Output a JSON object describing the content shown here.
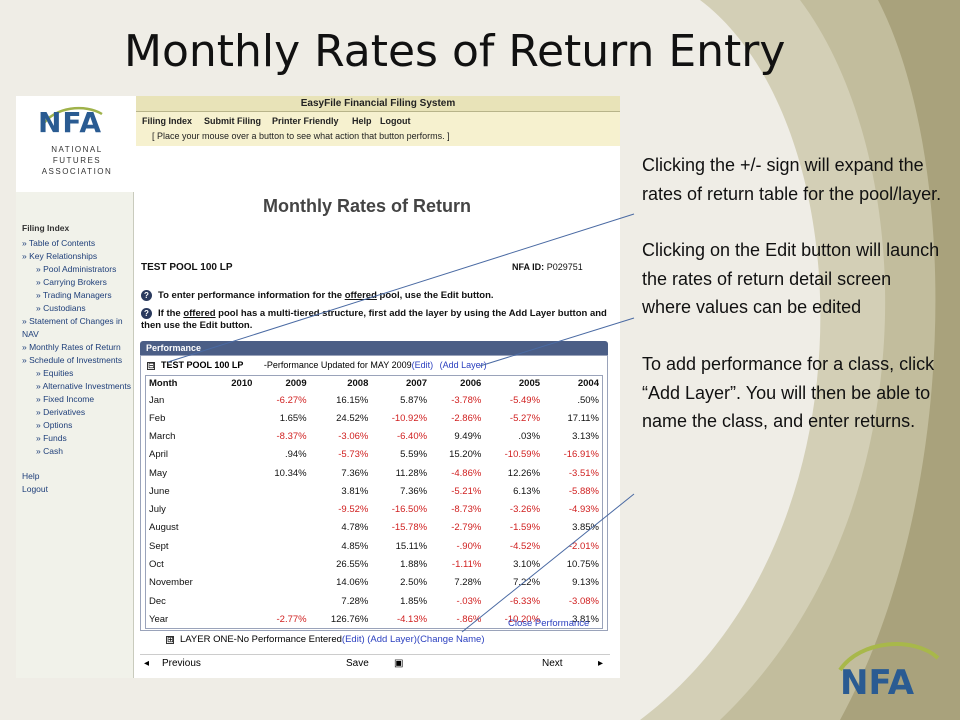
{
  "slide_title": "Monthly Rates of Return Entry",
  "app": {
    "logo_letters": "NFA",
    "logo_sub": [
      "NATIONAL",
      "FUTURES",
      "ASSOCIATION"
    ],
    "system_title": "EasyFile Financial Filing System",
    "menu": [
      "Filing Index",
      "Submit Filing",
      "Printer Friendly",
      "Help",
      "Logout"
    ],
    "hint": "[ Place your mouse over a button to see what action that button performs. ]",
    "sidebar": {
      "heading": "Filing Index",
      "items": [
        {
          "label": "» Table of Contents",
          "level": 1
        },
        {
          "label": "» Key Relationships",
          "level": 1
        },
        {
          "label": "» Pool Administrators",
          "level": 2
        },
        {
          "label": "» Carrying Brokers",
          "level": 2
        },
        {
          "label": "» Trading Managers",
          "level": 2
        },
        {
          "label": "» Custodians",
          "level": 2
        },
        {
          "label": "» Statement of Changes in NAV",
          "level": 1
        },
        {
          "label": "» Monthly Rates of Return",
          "level": 1
        },
        {
          "label": "» Schedule of Investments",
          "level": 1
        },
        {
          "label": "» Equities",
          "level": 2
        },
        {
          "label": "» Alternative Investments",
          "level": 2
        },
        {
          "label": "» Fixed Income",
          "level": 2
        },
        {
          "label": "» Derivatives",
          "level": 2
        },
        {
          "label": "» Options",
          "level": 2
        },
        {
          "label": "» Funds",
          "level": 2
        },
        {
          "label": "» Cash",
          "level": 2
        }
      ],
      "footer": [
        "Help",
        "Logout"
      ]
    },
    "page_title": "Monthly Rates of Return",
    "pool_name": "TEST POOL 100 LP",
    "nfa_id_label": "NFA ID:",
    "nfa_id_value": "P029751",
    "info_1_prefix": "To enter performance information for the ",
    "info_1_link": "offered",
    "info_1_suffix": " pool, use the Edit button.",
    "info_2_prefix": "If the ",
    "info_2_link": "offered",
    "info_2_suffix": " pool has a multi-tiered structure, first add the layer by using the Add Layer button and then use the Edit button.",
    "performance_header": "Performance",
    "pool_row": {
      "toggle": "⊟",
      "name": "TEST POOL 100 LP",
      "status": "-Performance Updated for MAY 2009",
      "edit_link": "(Edit)",
      "add_layer_link": "(Add Layer)"
    },
    "table": {
      "headers": [
        "Month",
        "2010",
        "2009",
        "2008",
        "2007",
        "2006",
        "2005",
        "2004"
      ],
      "rows": [
        [
          "Jan",
          "",
          "-6.27%",
          "16.15%",
          "5.87%",
          "-3.78%",
          "-5.49%",
          ".50%"
        ],
        [
          "Feb",
          "",
          "1.65%",
          "24.52%",
          "-10.92%",
          "-2.86%",
          "-5.27%",
          "17.11%"
        ],
        [
          "March",
          "",
          "-8.37%",
          "-3.06%",
          "-6.40%",
          "9.49%",
          ".03%",
          "3.13%"
        ],
        [
          "April",
          "",
          ".94%",
          "-5.73%",
          "5.59%",
          "15.20%",
          "-10.59%",
          "-16.91%"
        ],
        [
          "May",
          "",
          "10.34%",
          "7.36%",
          "11.28%",
          "-4.86%",
          "12.26%",
          "-3.51%"
        ],
        [
          "June",
          "",
          "",
          "3.81%",
          "7.36%",
          "-5.21%",
          "6.13%",
          "-5.88%"
        ],
        [
          "July",
          "",
          "",
          "-9.52%",
          "-16.50%",
          "-8.73%",
          "-3.26%",
          "-4.93%"
        ],
        [
          "August",
          "",
          "",
          "4.78%",
          "-15.78%",
          "-2.79%",
          "-1.59%",
          "3.85%"
        ],
        [
          "Sept",
          "",
          "",
          "4.85%",
          "15.11%",
          "-.90%",
          "-4.52%",
          "-2.01%"
        ],
        [
          "Oct",
          "",
          "",
          "26.55%",
          "1.88%",
          "-1.11%",
          "3.10%",
          "10.75%"
        ],
        [
          "November",
          "",
          "",
          "14.06%",
          "2.50%",
          "7.28%",
          "7.22%",
          "9.13%"
        ],
        [
          "Dec",
          "",
          "",
          "7.28%",
          "1.85%",
          "-.03%",
          "-6.33%",
          "-3.08%"
        ],
        [
          "Year",
          "",
          "-2.77%",
          "126.76%",
          "-4.13%",
          "-.86%",
          "-10.20%",
          "3.81%"
        ]
      ]
    },
    "close_performance": "Close Performance",
    "layer_row": {
      "toggle": "⊞",
      "name": "LAYER ONE-No Performance Entered",
      "edit_link": "(Edit)",
      "add_layer_link": "(Add Layer)",
      "change_name_link": "(Change Name)"
    },
    "footer": {
      "previous": "Previous",
      "save": "Save",
      "next": "Next"
    }
  },
  "notes": [
    "Clicking the +/- sign will expand the rates of return table for the pool/layer.",
    "Clicking on the Edit button will launch the rates of return detail screen where values can be edited",
    "To add performance for a class, click “Add Layer”. You will then be able to name the class, and enter returns."
  ],
  "corner_logo": "NFA",
  "colors": {
    "negative": "#d01f1f",
    "link": "#2a3fbf",
    "perf_header": "#4b5e86"
  }
}
